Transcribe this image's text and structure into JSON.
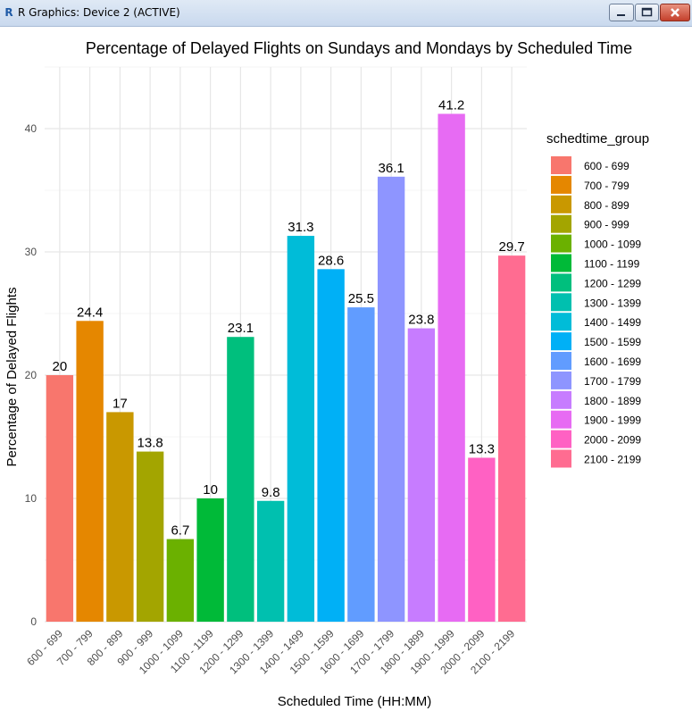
{
  "window": {
    "title": "R Graphics: Device 2 (ACTIVE)",
    "app_icon": "R",
    "buttons": {
      "minimize": "minimize-icon",
      "maximize": "maximize-icon",
      "close": "close-icon"
    }
  },
  "chart_data": {
    "type": "bar",
    "title": "Percentage of Delayed Flights on Sundays and Mondays by Scheduled Time",
    "xlabel": "Scheduled Time (HH:MM)",
    "ylabel": "Percentage of Delayed Flights",
    "ylim": [
      0,
      45
    ],
    "yticks": [
      0,
      10,
      20,
      30,
      40
    ],
    "grid": true,
    "legend_title": "schedtime_group",
    "legend_position": "right",
    "categories": [
      "600 - 699",
      "700 - 799",
      "800 - 899",
      "900 - 999",
      "1000 - 1099",
      "1100 - 1199",
      "1200 - 1299",
      "1300 - 1399",
      "1400 - 1499",
      "1500 - 1599",
      "1600 - 1699",
      "1700 - 1799",
      "1800 - 1899",
      "1900 - 1999",
      "2000 - 2099",
      "2100 - 2199"
    ],
    "tick_labels": [
      "600 - 699",
      "700 - 799",
      "800 - 899",
      "900 - 999",
      "1000 - 1099",
      "1100 - 1199",
      "1200 - 1299",
      "1300 - 1399",
      "1400 - 1499",
      "1500 - 1599",
      "1600 - 1699",
      "1700 - 1799",
      "1800 - 1899",
      "1900 - 1999",
      "2000 - 2099",
      "2100 - 2199"
    ],
    "values": [
      20,
      24.4,
      17,
      13.8,
      6.7,
      10,
      23.1,
      9.8,
      31.3,
      28.6,
      25.5,
      36.1,
      23.8,
      41.2,
      13.3,
      29.7
    ],
    "value_labels": [
      "20",
      "24.4",
      "17",
      "13.8",
      "6.7",
      "10",
      "23.1",
      "9.8",
      "31.3",
      "28.6",
      "25.5",
      "36.1",
      "23.8",
      "41.2",
      "13.3",
      "29.7"
    ],
    "colors": [
      "#F8766D",
      "#E58700",
      "#C99800",
      "#A3A500",
      "#6BB100",
      "#00BA38",
      "#00BF7D",
      "#00C0AF",
      "#00BCD8",
      "#00B0F6",
      "#619CFF",
      "#8E95FF",
      "#C77CFF",
      "#E76BF3",
      "#FF61C3",
      "#FF6C91"
    ]
  }
}
